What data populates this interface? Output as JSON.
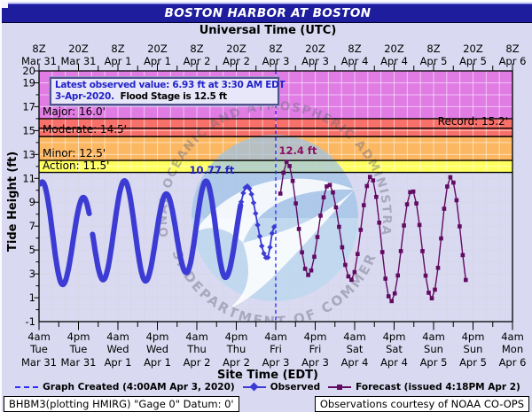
{
  "title": "BOSTON HARBOR AT BOSTON",
  "top_axis_title": "Universal Time (UTC)",
  "bottom_axis_title": "Site Time (EDT)",
  "y_axis_title": "Tide Height (ft)",
  "annotation": {
    "value_text": "Latest observed value: 6.93 ft at 3:30 AM EDT",
    "date_text": "3-Apr-2020.",
    "flood_text": "Flood Stage is 12.5 ft"
  },
  "legend": {
    "created": "Graph Created (4:00AM Apr 3, 2020)",
    "observed": "Observed",
    "forecast": "Forecast (issued 4:18PM Apr 2)"
  },
  "footer_left": "BHBM3(plotting HMIRG) \"Gage 0\" Datum: 0'",
  "footer_right": "Observations courtesy of NOAA CO-OPS",
  "watermark": {
    "top_text": "NATIONAL OCEANIC AND ATMOSPHERIC ADMINISTRATION",
    "bottom_text": "U.S. DEPARTMENT OF COMMERCE"
  },
  "chart_data": {
    "type": "line",
    "x_unit": "hours since 2020-03-31 04:00 EDT",
    "x_range": [
      0,
      144
    ],
    "y_range": [
      -1,
      20
    ],
    "y_ticks": [
      20,
      19,
      17,
      15,
      13,
      11,
      9,
      7,
      5,
      3,
      1,
      -1
    ],
    "grid": {
      "x_hours": 4,
      "y_ft": 1,
      "tick_hours": 6
    },
    "utc_tick_labels": [
      {
        "time": "8Z",
        "date": "Mar 31"
      },
      {
        "time": "20Z",
        "date": "Mar 31"
      },
      {
        "time": "8Z",
        "date": "Apr 1"
      },
      {
        "time": "20Z",
        "date": "Apr 1"
      },
      {
        "time": "8Z",
        "date": "Apr 2"
      },
      {
        "time": "20Z",
        "date": "Apr 2"
      },
      {
        "time": "8Z",
        "date": "Apr 3"
      },
      {
        "time": "20Z",
        "date": "Apr 3"
      },
      {
        "time": "8Z",
        "date": "Apr 4"
      },
      {
        "time": "20Z",
        "date": "Apr 4"
      },
      {
        "time": "8Z",
        "date": "Apr 5"
      },
      {
        "time": "20Z",
        "date": "Apr 5"
      },
      {
        "time": "8Z",
        "date": "Apr 6"
      }
    ],
    "site_tick_labels": [
      {
        "time": "4am",
        "day": "Tue",
        "date": "Mar 31"
      },
      {
        "time": "4pm",
        "day": "Tue",
        "date": "Mar 31"
      },
      {
        "time": "4am",
        "day": "Wed",
        "date": "Apr 1"
      },
      {
        "time": "4pm",
        "day": "Wed",
        "date": "Apr 1"
      },
      {
        "time": "4am",
        "day": "Thu",
        "date": "Apr 2"
      },
      {
        "time": "4pm",
        "day": "Thu",
        "date": "Apr 2"
      },
      {
        "time": "4am",
        "day": "Fri",
        "date": "Apr 3"
      },
      {
        "time": "4pm",
        "day": "Fri",
        "date": "Apr 3"
      },
      {
        "time": "4am",
        "day": "Sat",
        "date": "Apr 4"
      },
      {
        "time": "4pm",
        "day": "Sat",
        "date": "Apr 4"
      },
      {
        "time": "4am",
        "day": "Sun",
        "date": "Apr 5"
      },
      {
        "time": "4pm",
        "day": "Sun",
        "date": "Apr 5"
      },
      {
        "time": "4am",
        "day": "Mon",
        "date": "Apr 6"
      }
    ],
    "flood_zones": [
      {
        "name": "Action",
        "threshold": 11.5,
        "top": 12.5,
        "label": "Action: 11.5'",
        "color": "#ffff5e"
      },
      {
        "name": "Minor",
        "threshold": 12.5,
        "top": 14.5,
        "label": "Minor: 12.5'",
        "color": "#fbb761"
      },
      {
        "name": "Moderate",
        "threshold": 14.5,
        "top": 16.0,
        "label": "Moderate: 14.5'",
        "color": "#f8706a"
      },
      {
        "name": "Major",
        "threshold": 16.0,
        "top": 20.0,
        "label": "Major: 16.0'",
        "color": "#e07ce4"
      }
    ],
    "record": {
      "label": "Record: 15.2'",
      "level": 15.2
    },
    "flood_stage": 12.5,
    "graph_created_hour": 72,
    "series": [
      {
        "name": "Observed",
        "color": "#3c3cd4",
        "marker": "diamond",
        "extremes": [
          [
            0,
            10.5
          ],
          [
            1.0,
            10.7
          ],
          [
            7.2,
            2.1
          ],
          [
            13.5,
            9.4
          ],
          [
            19.5,
            2.5
          ],
          [
            26.0,
            10.8
          ],
          [
            32.4,
            2.4
          ],
          [
            38.7,
            9.7
          ],
          [
            44.8,
            3.1
          ],
          [
            50.8,
            10.77
          ],
          [
            56.7,
            2.7
          ],
          [
            63.3,
            10.35
          ],
          [
            69.4,
            4.3
          ],
          [
            71.5,
            6.93
          ]
        ],
        "dense_until": 61.5,
        "gap": [
          15.4,
          16.3
        ],
        "start": 0,
        "end": 71.5
      },
      {
        "name": "Forecast",
        "color": "#620b62",
        "marker": "square",
        "extremes": [
          [
            72.0,
            8.2
          ],
          [
            75.4,
            12.4
          ],
          [
            81.9,
            2.9
          ],
          [
            88.1,
            10.5
          ],
          [
            94.9,
            2.5
          ],
          [
            100.9,
            11.15
          ],
          [
            107.1,
            0.7
          ],
          [
            113.4,
            10.0
          ],
          [
            119.4,
            0.95
          ],
          [
            125.2,
            11.1
          ],
          [
            131.4,
            0.9
          ]
        ],
        "start": 73.4,
        "end": 129.8
      }
    ],
    "point_labels": [
      {
        "text": "10.77 ft",
        "hour": 50.8,
        "value": 10.77,
        "color": "#2323cc"
      },
      {
        "text": "12.4 ft",
        "hour": 75.4,
        "value": 12.4,
        "color": "#8b0f62"
      }
    ],
    "colors": {
      "created_line": "#2d2dff",
      "grid_on_white": "#d7d7e8",
      "grid_on_bands": "rgba(255,255,255,0.55)",
      "frame": "#000000"
    }
  }
}
